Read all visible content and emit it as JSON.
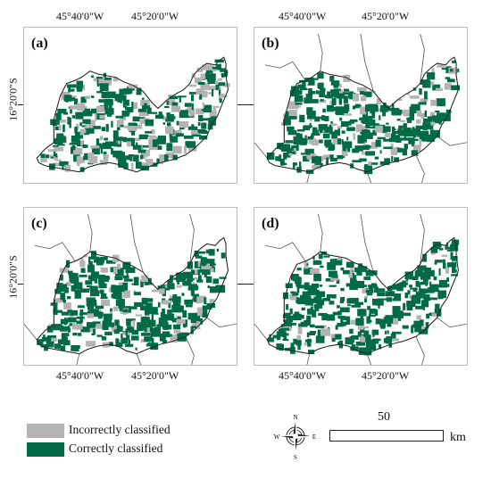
{
  "colors": {
    "correct": "#006b45",
    "incorrect": "#b3b3b3",
    "boundary": "#555555",
    "outline": "#222222"
  },
  "coordinates": {
    "top_left_lon": "45°40'0\"W",
    "top_right_lon": "45°20'0\"W",
    "lat_left": "16°20'0\"S",
    "lat_middle": "16°20'0\"S"
  },
  "panels": [
    {
      "label": "(a)",
      "has_boundaries": false,
      "incorrect_ratio": 0.38
    },
    {
      "label": "(b)",
      "has_boundaries": true,
      "incorrect_ratio": 0.22
    },
    {
      "label": "(c)",
      "has_boundaries": true,
      "incorrect_ratio": 0.2
    },
    {
      "label": "(d)",
      "has_boundaries": true,
      "incorrect_ratio": 0.1
    }
  ],
  "legend": {
    "incorrect_label": "Incorrectly classified",
    "correct_label": "Correctly classified"
  },
  "compass": {
    "n": "N",
    "s": "S",
    "e": "E",
    "w": "W"
  },
  "scale": {
    "value": "50",
    "unit": "km"
  }
}
